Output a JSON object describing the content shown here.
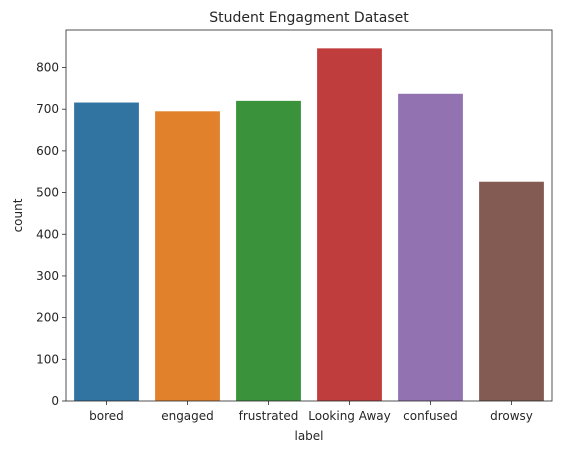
{
  "chart_data": {
    "type": "bar",
    "title": "Student Engagment Dataset",
    "xlabel": "label",
    "ylabel": "count",
    "categories": [
      "bored",
      "engaged",
      "frustrated",
      "Looking Away",
      "confused",
      "drowsy"
    ],
    "values": [
      716,
      695,
      720,
      846,
      737,
      526
    ],
    "colors": [
      "#3274a1",
      "#e1812c",
      "#3a923a",
      "#c03d3e",
      "#9372b2",
      "#845b53"
    ],
    "ylim": [
      0,
      890
    ],
    "yticks": [
      0,
      100,
      200,
      300,
      400,
      500,
      600,
      700,
      800
    ],
    "grid": false,
    "legend": "none"
  }
}
